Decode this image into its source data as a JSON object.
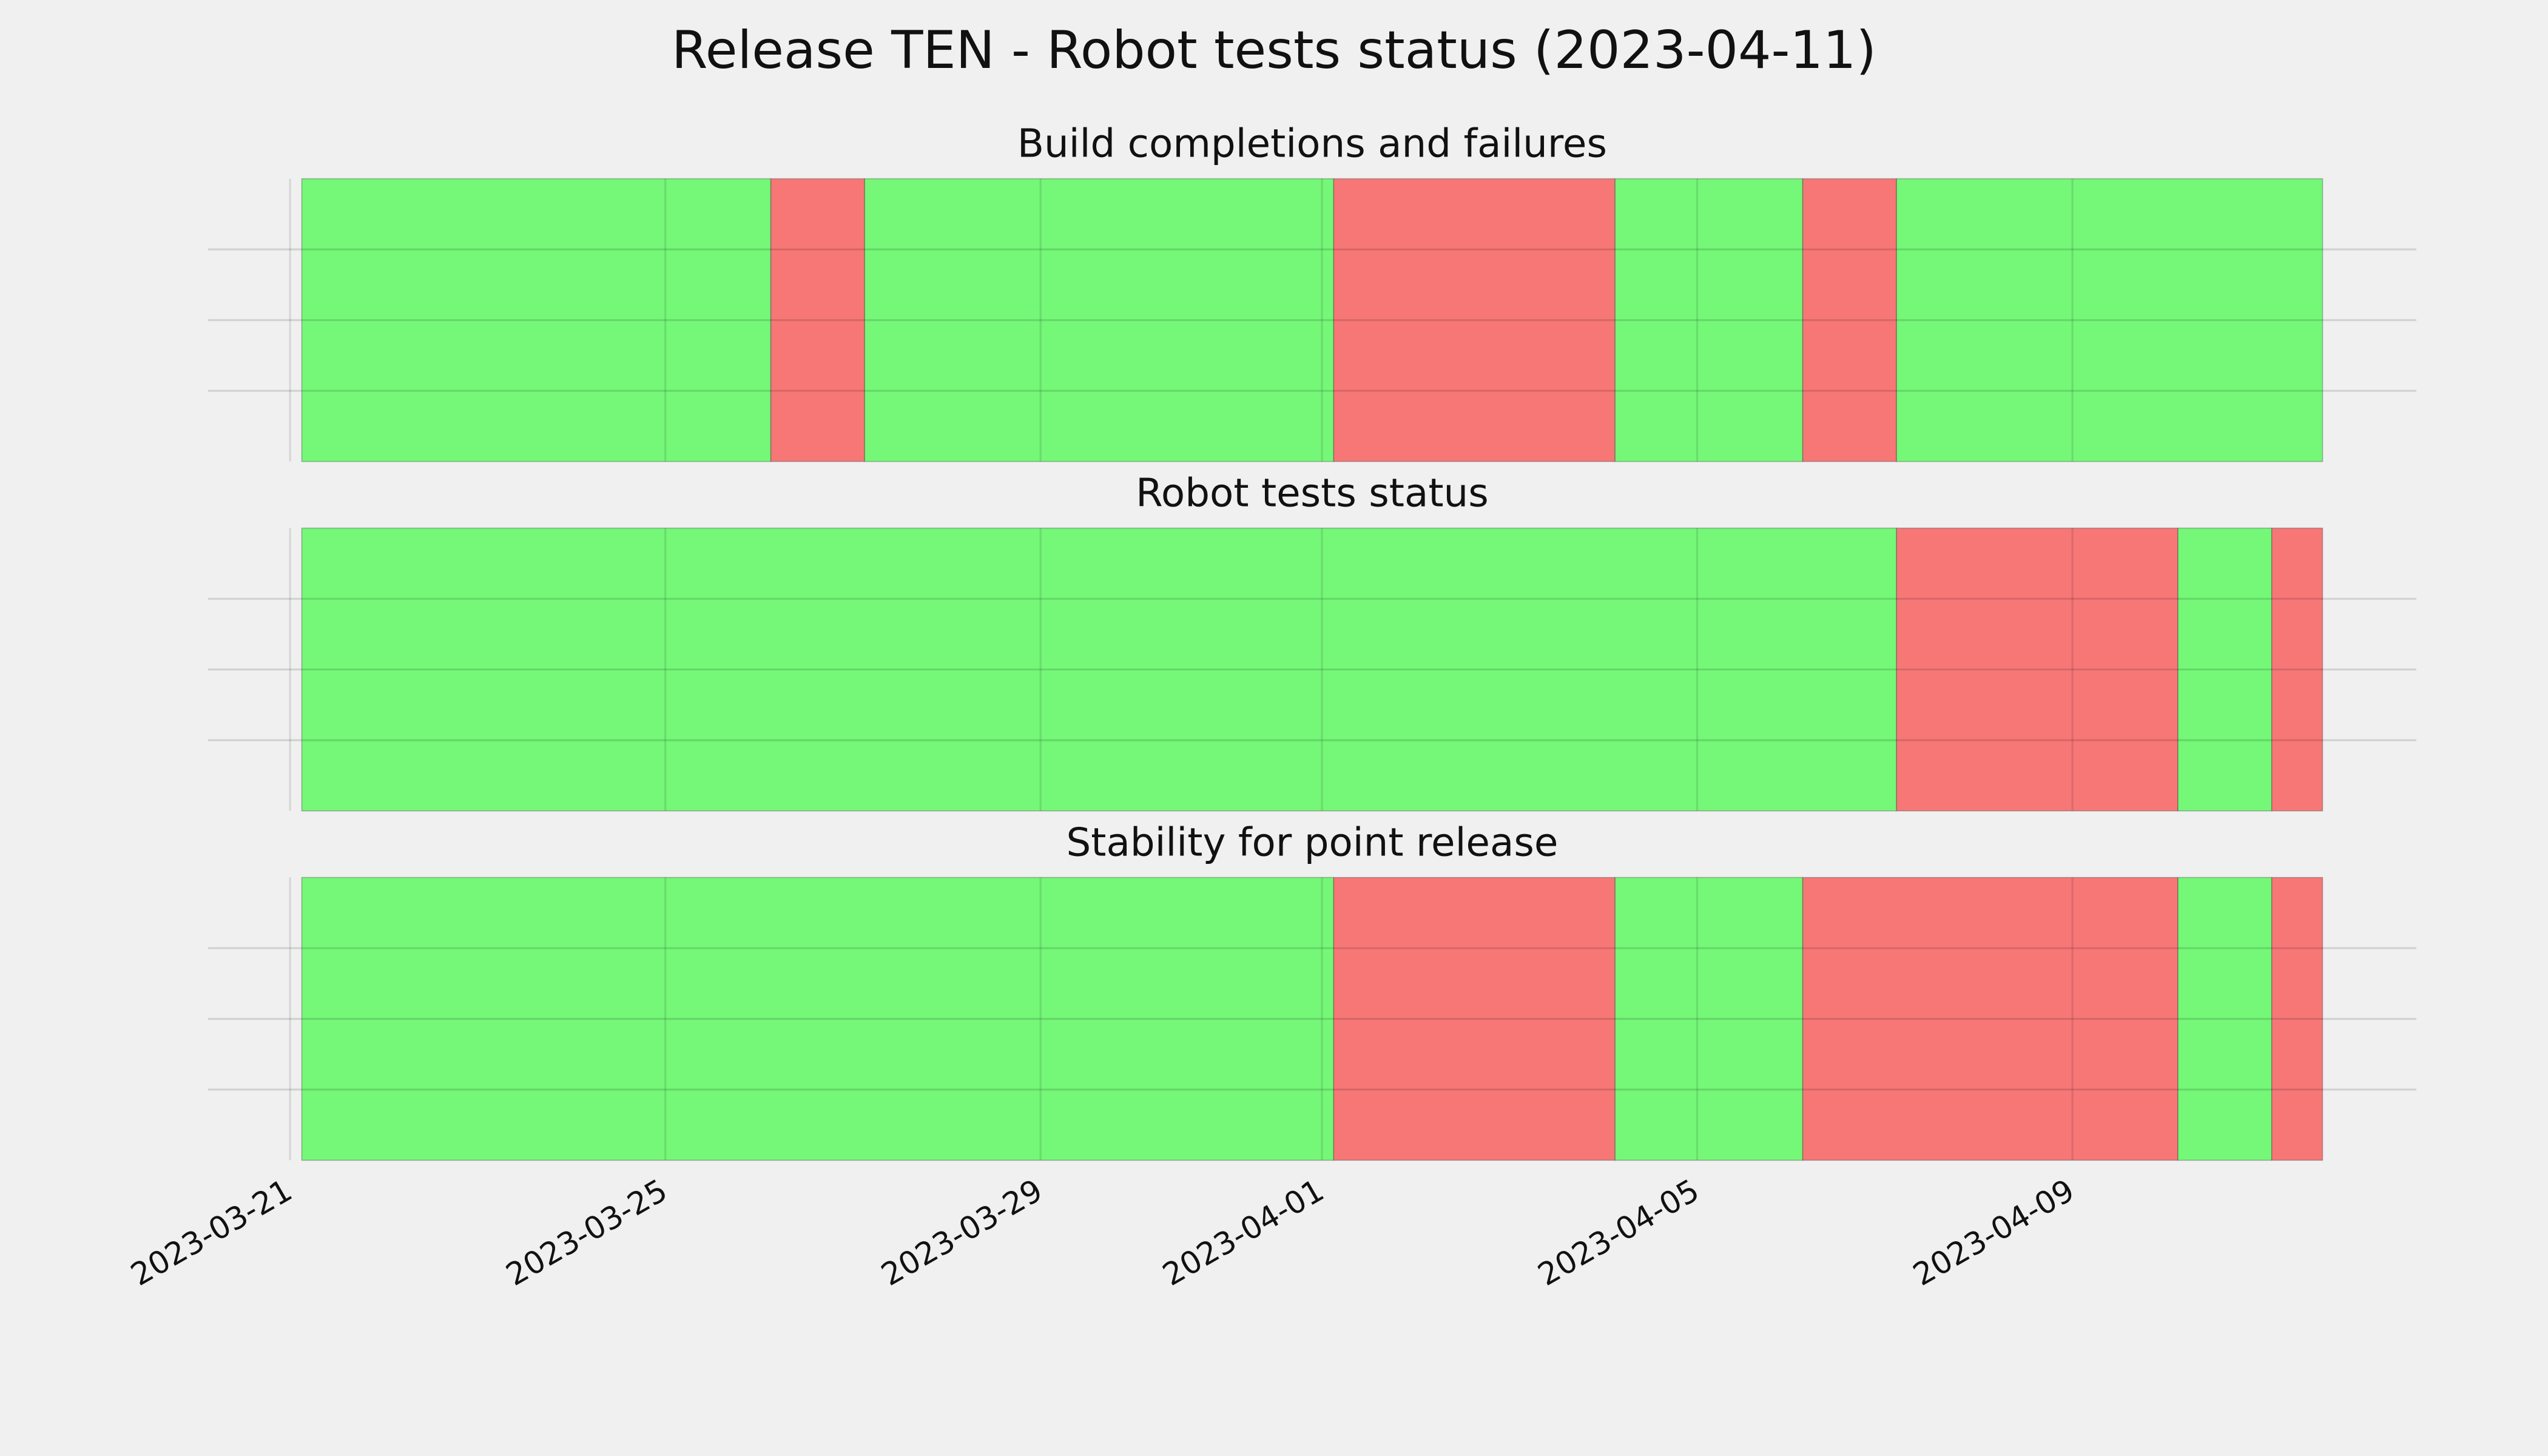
{
  "title": "Release TEN - Robot tests status (2023-04-11)",
  "chart_data": [
    {
      "type": "timeline",
      "title": "Build completions and failures",
      "xlim": [
        "2023-03-20 03:00",
        "2023-04-12 16:00"
      ],
      "xticks": [
        "2023-03-21",
        "2023-03-25",
        "2023-03-29",
        "2023-04-01",
        "2023-04-05",
        "2023-04-09"
      ],
      "ylim": [
        0,
        1
      ],
      "yticks": [
        0.25,
        0.5,
        0.75
      ],
      "grid": true,
      "segments": [
        {
          "start": "2023-03-21 03:00",
          "end": "2023-03-26 03:00",
          "color": "#75f778"
        },
        {
          "start": "2023-03-26 03:00",
          "end": "2023-03-27 03:00",
          "color": "#f77777"
        },
        {
          "start": "2023-03-27 03:00",
          "end": "2023-04-01 03:00",
          "color": "#75f778"
        },
        {
          "start": "2023-04-01 03:00",
          "end": "2023-04-04 03:00",
          "color": "#f77777"
        },
        {
          "start": "2023-04-04 03:00",
          "end": "2023-04-06 03:00",
          "color": "#75f778"
        },
        {
          "start": "2023-04-06 03:00",
          "end": "2023-04-07 03:00",
          "color": "#f77777"
        },
        {
          "start": "2023-04-07 03:00",
          "end": "2023-04-11 16:00",
          "color": "#75f778"
        }
      ]
    },
    {
      "type": "timeline",
      "title": "Robot tests status",
      "xlim": [
        "2023-03-20 03:00",
        "2023-04-12 16:00"
      ],
      "xticks": [
        "2023-03-21",
        "2023-03-25",
        "2023-03-29",
        "2023-04-01",
        "2023-04-05",
        "2023-04-09"
      ],
      "ylim": [
        0,
        1
      ],
      "yticks": [
        0.25,
        0.5,
        0.75
      ],
      "grid": true,
      "segments": [
        {
          "start": "2023-03-21 03:00",
          "end": "2023-04-07 03:00",
          "color": "#75f778"
        },
        {
          "start": "2023-04-07 03:00",
          "end": "2023-04-10 03:00",
          "color": "#f77777"
        },
        {
          "start": "2023-04-10 03:00",
          "end": "2023-04-11 03:00",
          "color": "#75f778"
        },
        {
          "start": "2023-04-11 03:00",
          "end": "2023-04-11 16:00",
          "color": "#f77777"
        }
      ]
    },
    {
      "type": "timeline",
      "title": "Stability for point release",
      "xlim": [
        "2023-03-20 03:00",
        "2023-04-12 16:00"
      ],
      "xticks": [
        "2023-03-21",
        "2023-03-25",
        "2023-03-29",
        "2023-04-01",
        "2023-04-05",
        "2023-04-09"
      ],
      "ylim": [
        0,
        1
      ],
      "yticks": [
        0.25,
        0.5,
        0.75
      ],
      "grid": true,
      "segments": [
        {
          "start": "2023-03-21 03:00",
          "end": "2023-04-01 03:00",
          "color": "#75f778"
        },
        {
          "start": "2023-04-01 03:00",
          "end": "2023-04-04 03:00",
          "color": "#f77777"
        },
        {
          "start": "2023-04-04 03:00",
          "end": "2023-04-06 03:00",
          "color": "#75f778"
        },
        {
          "start": "2023-04-06 03:00",
          "end": "2023-04-10 03:00",
          "color": "#f77777"
        },
        {
          "start": "2023-04-10 03:00",
          "end": "2023-04-11 03:00",
          "color": "#75f778"
        },
        {
          "start": "2023-04-11 03:00",
          "end": "2023-04-11 16:00",
          "color": "#f77777"
        }
      ]
    }
  ]
}
